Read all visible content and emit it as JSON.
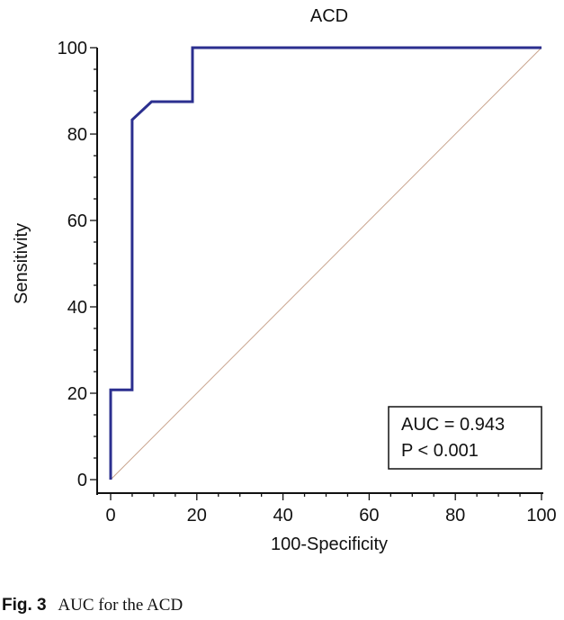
{
  "chart_data": {
    "type": "line",
    "title": "ACD",
    "xlabel": "100-Specificity",
    "ylabel": "Sensitivity",
    "xlim": [
      0,
      100
    ],
    "ylim": [
      0,
      100
    ],
    "xticks": [
      0,
      20,
      40,
      60,
      80,
      100
    ],
    "yticks": [
      0,
      20,
      40,
      60,
      80,
      100
    ],
    "grid": false,
    "series": [
      {
        "color": "#2b2f8f",
        "x": [
          0,
          0,
          5,
          5,
          9.5,
          19,
          19,
          100
        ],
        "y": [
          0,
          20.8,
          20.8,
          83.3,
          87.5,
          87.5,
          100,
          100
        ]
      }
    ],
    "reference_line": {
      "x": [
        0,
        100
      ],
      "y": [
        0,
        100
      ],
      "color": "#c9a48e"
    },
    "annotation": {
      "lines": [
        "AUC = 0.943",
        "P < 0.001"
      ]
    }
  },
  "caption": {
    "label": "Fig. 3",
    "text": "AUC for the ACD"
  }
}
